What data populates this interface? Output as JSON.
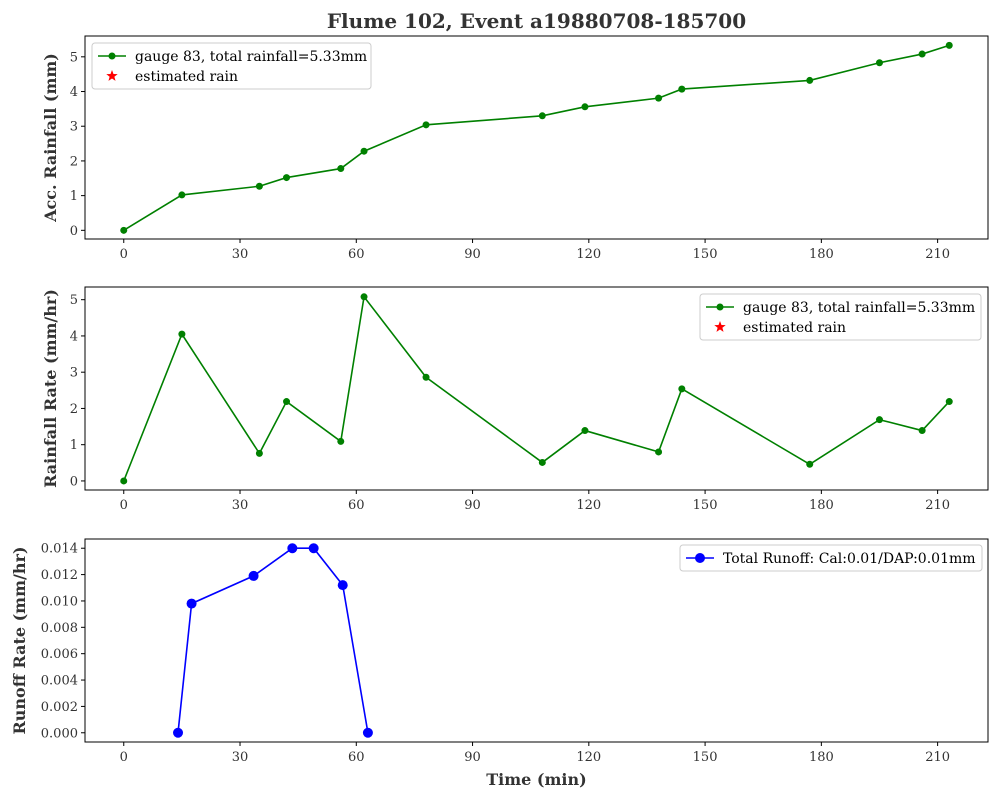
{
  "chart_data": {
    "title": "Flume 102, Event a19880708-185700",
    "xlabel": "Time (min)",
    "x_ticks": [
      0,
      30,
      60,
      90,
      120,
      150,
      180,
      210
    ],
    "xlim": [
      -10,
      223
    ],
    "panels": [
      {
        "id": "acc",
        "type": "line",
        "ylabel": "Acc. Rainfall (mm)",
        "ylim": [
          -0.25,
          5.6
        ],
        "y_ticks": [
          "0",
          "1",
          "2",
          "3",
          "4",
          "5"
        ],
        "y_tick_values": [
          0,
          1,
          2,
          3,
          4,
          5
        ],
        "legend_position": "upper-left",
        "series": [
          {
            "name": "gauge 83, total rainfall=5.33mm",
            "color": "#008000",
            "marker": "circle",
            "x": [
              0,
              15,
              35,
              42,
              56,
              62,
              78,
              108,
              119,
              138,
              144,
              177,
              195,
              206,
              213
            ],
            "y": [
              0.0,
              1.02,
              1.27,
              1.52,
              1.78,
              2.28,
              3.04,
              3.3,
              3.56,
              3.81,
              4.07,
              4.32,
              4.83,
              5.08,
              5.33
            ]
          },
          {
            "name": "estimated rain",
            "color": "#ff0000",
            "marker": "star",
            "x": [],
            "y": []
          }
        ]
      },
      {
        "id": "rate",
        "type": "line",
        "ylabel": "Rainfall Rate (mm/hr)",
        "ylim": [
          -0.25,
          5.35
        ],
        "y_ticks": [
          "0",
          "1",
          "2",
          "3",
          "4",
          "5"
        ],
        "y_tick_values": [
          0,
          1,
          2,
          3,
          4,
          5
        ],
        "legend_position": "upper-right",
        "series": [
          {
            "name": "gauge 83, total rainfall=5.33mm",
            "color": "#008000",
            "marker": "circle",
            "x": [
              0,
              15,
              35,
              42,
              56,
              62,
              78,
              108,
              119,
              138,
              144,
              177,
              195,
              206,
              213
            ],
            "y": [
              0.0,
              4.05,
              0.76,
              2.19,
              1.09,
              5.08,
              2.86,
              0.51,
              1.39,
              0.8,
              2.54,
              0.46,
              1.69,
              1.39,
              2.19
            ]
          },
          {
            "name": "estimated rain",
            "color": "#ff0000",
            "marker": "star",
            "x": [],
            "y": []
          }
        ]
      },
      {
        "id": "runoff",
        "type": "line",
        "ylabel": "Runoff Rate (mm/hr)",
        "ylim": [
          -0.0007,
          0.0147
        ],
        "y_ticks": [
          "0.000",
          "0.002",
          "0.004",
          "0.006",
          "0.008",
          "0.010",
          "0.012",
          "0.014"
        ],
        "y_tick_values": [
          0.0,
          0.002,
          0.004,
          0.006,
          0.008,
          0.01,
          0.012,
          0.014
        ],
        "legend_position": "upper-right",
        "series": [
          {
            "name": "Total Runoff: Cal:0.01/DAP:0.01mm",
            "color": "#0000ff",
            "marker": "circle",
            "x": [
              14,
              17.5,
              33.5,
              43.5,
              49,
              56.5,
              63
            ],
            "y": [
              0.0,
              0.0098,
              0.0119,
              0.014,
              0.014,
              0.0112,
              0.0
            ]
          }
        ]
      }
    ]
  }
}
